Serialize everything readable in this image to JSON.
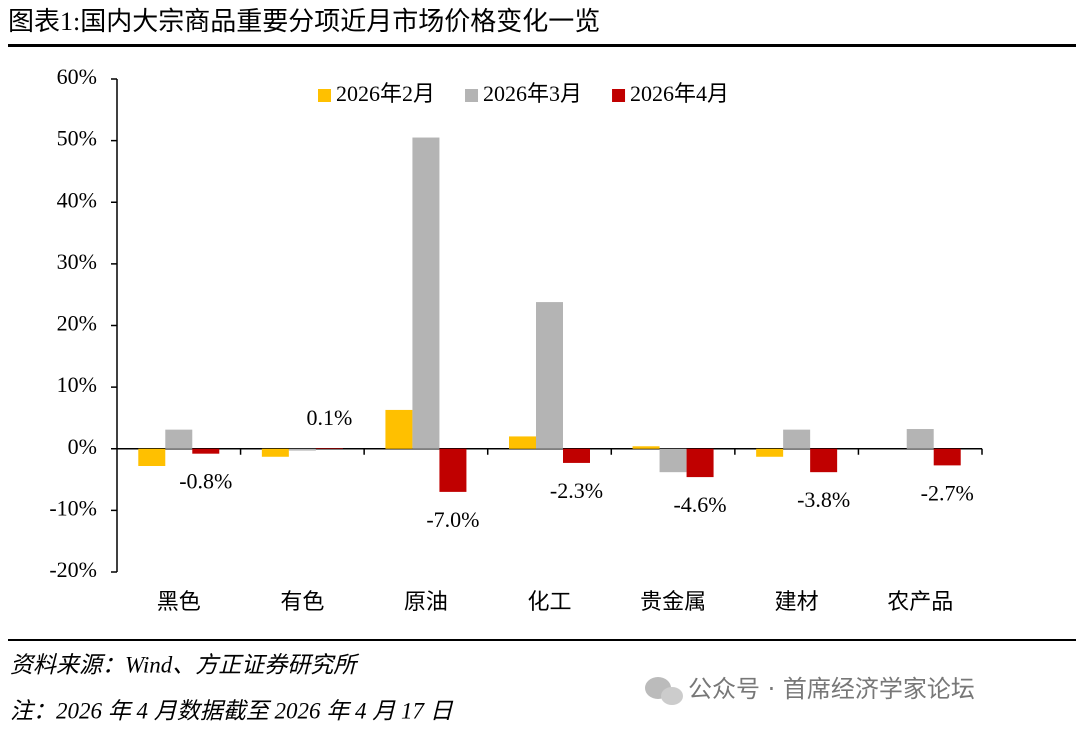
{
  "chart_data": {
    "type": "bar",
    "title": "图表1:国内大宗商品重要分项近月市场价格变化一览",
    "categories": [
      "黑色",
      "有色",
      "原油",
      "化工",
      "贵金属",
      "建材",
      "农产品"
    ],
    "series": [
      {
        "name": "2026年2月",
        "color": "#ffc000",
        "values": [
          -2.8,
          -1.3,
          6.3,
          2.0,
          0.4,
          -1.3,
          0
        ]
      },
      {
        "name": "2026年3月",
        "color": "#b4b4b4",
        "values": [
          3.1,
          -0.3,
          50.5,
          23.8,
          -3.8,
          3.1,
          3.2
        ]
      },
      {
        "name": "2026年4月",
        "color": "#c00000",
        "values": [
          -0.8,
          0.1,
          -7.0,
          -2.3,
          -4.6,
          -3.8,
          -2.7
        ],
        "value_labels": [
          "-0.8%",
          "0.1%",
          "-7.0%",
          "-2.3%",
          "-4.6%",
          "-3.8%",
          "-2.7%"
        ]
      }
    ],
    "ylim": [
      -20,
      60
    ],
    "yticks": [
      {
        "value": -20,
        "label": "-20%"
      },
      {
        "value": -10,
        "label": "-10%"
      },
      {
        "value": 0,
        "label": "0%"
      },
      {
        "value": 10,
        "label": "10%"
      },
      {
        "value": 20,
        "label": "20%"
      },
      {
        "value": 30,
        "label": "30%"
      },
      {
        "value": 40,
        "label": "40%"
      },
      {
        "value": 50,
        "label": "50%"
      },
      {
        "value": 60,
        "label": "60%"
      }
    ],
    "legend": "top",
    "grid": false
  },
  "footer": {
    "source": "资料来源：Wind、方正证券研究所",
    "note": "注：2026 年 4 月数据截至 2026 年 4 月 17 日",
    "watermark": "公众号 · 首席经济学家论坛"
  }
}
